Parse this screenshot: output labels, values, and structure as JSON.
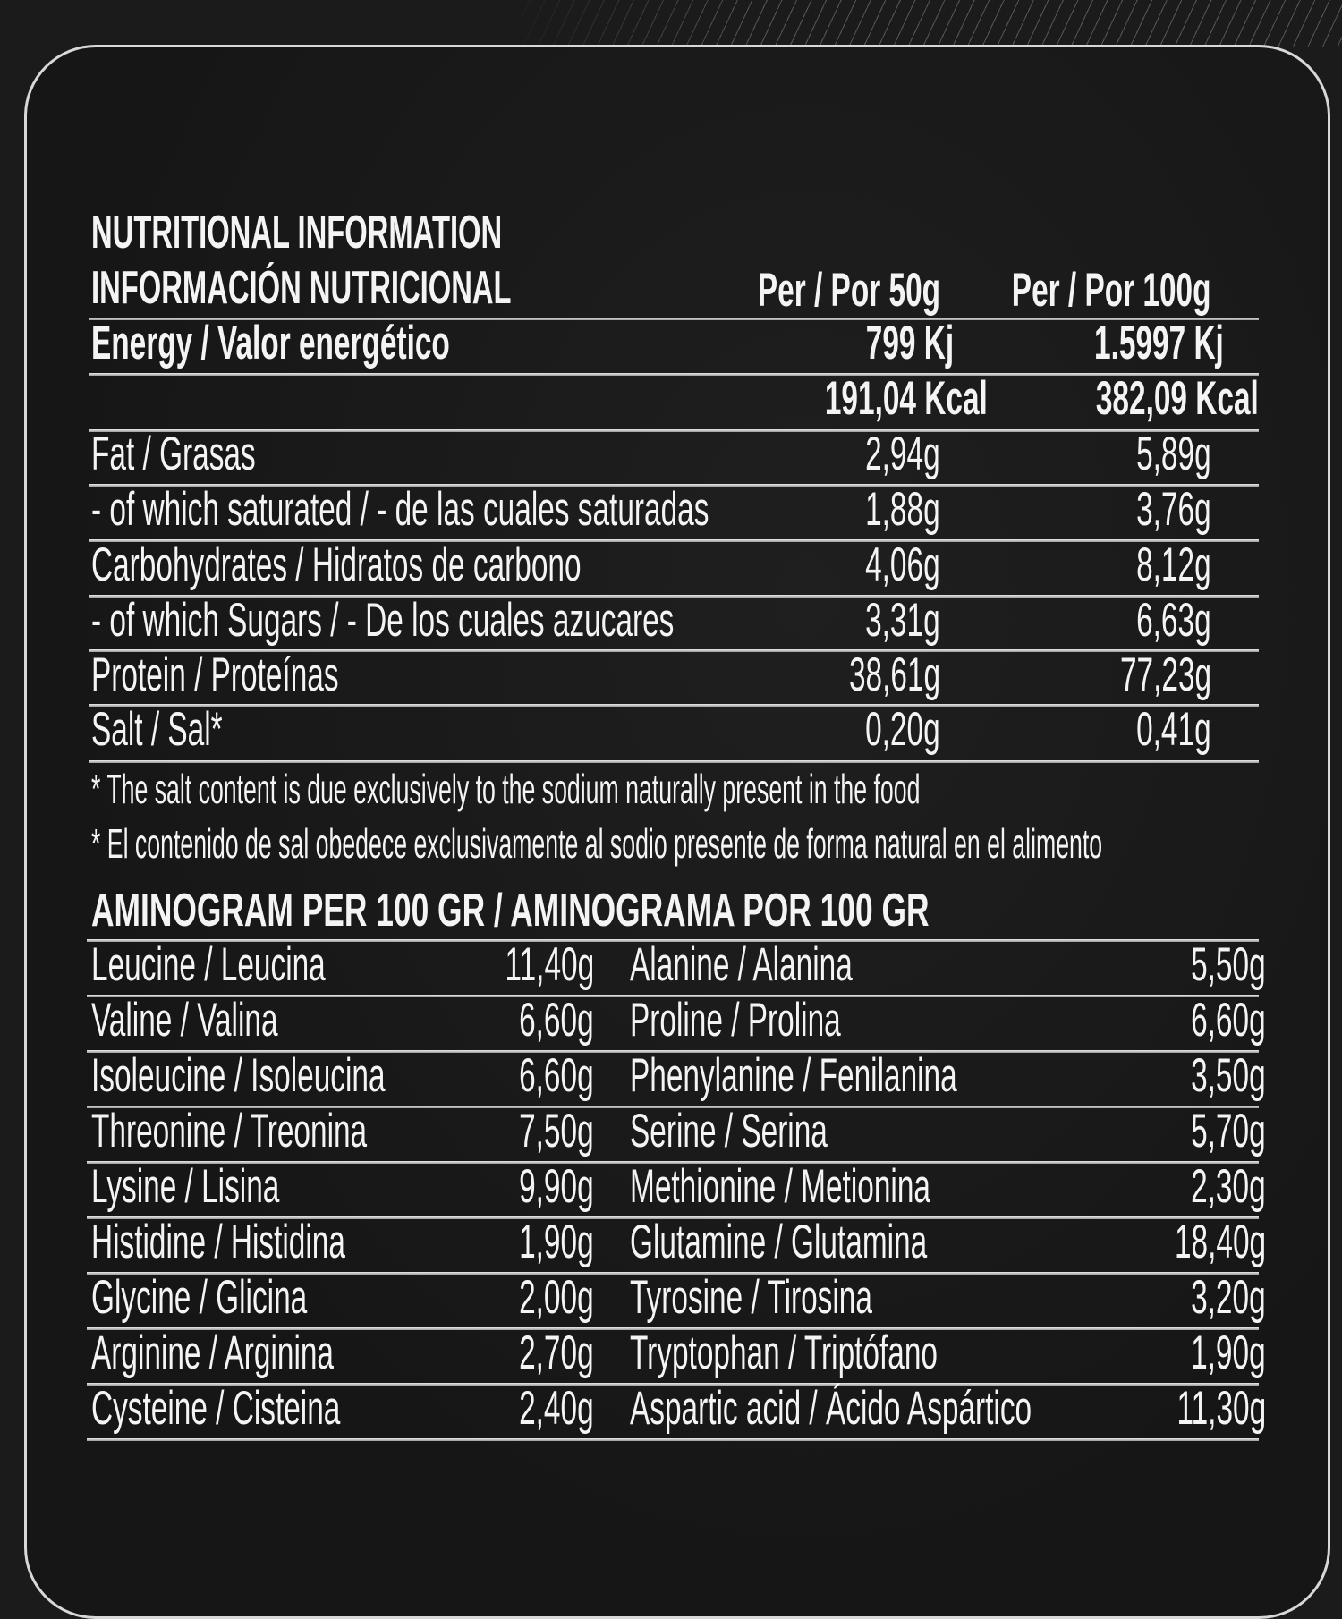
{
  "colors": {
    "background": "#1b1b1b",
    "text": "#f4f4f4",
    "rule": "#c8c8c8"
  },
  "nutrition": {
    "title_en": "NUTRITIONAL INFORMATION",
    "title_es": "INFORMACIÓN NUTRICIONAL",
    "col_50": "Per / Por 50g",
    "col_100": "Per / Por 100g",
    "energy": {
      "label": "Energy  / Valor energético",
      "kj_50": "799 Kj",
      "kj_100": "1.5997 Kj",
      "kcal_50": "191,04 Kcal",
      "kcal_100": "382,09 Kcal"
    },
    "rows": [
      {
        "label": "Fat / Grasas",
        "v50": "2,94g",
        "v100": "5,89g"
      },
      {
        "label": "- of which saturated / - de las cuales saturadas",
        "v50": "1,88g",
        "v100": "3,76g"
      },
      {
        "label": "Carbohydrates  / Hidratos de carbono",
        "v50": "4,06g",
        "v100": "8,12g"
      },
      {
        "label": "- of which Sugars / - De los cuales azucares",
        "v50": "3,31g",
        "v100": "6,63g"
      },
      {
        "label": "Protein / Proteínas",
        "v50": "38,61g",
        "v100": "77,23g"
      },
      {
        "label": "Salt / Sal*",
        "v50": "0,20g",
        "v100": "0,41g"
      }
    ],
    "footnote_en": "* The salt content is due exclusively to the sodium naturally present in the food",
    "footnote_es": "* El contenido de sal obedece exclusivamente al sodio presente de forma natural en el alimento"
  },
  "aminogram": {
    "title": "AMINOGRAM PER 100 GR / AMINOGRAMA POR 100 GR",
    "rows": [
      {
        "left": "Leucine  / Leucina",
        "left_value": "11,40g",
        "right": "Alanine / Alanina",
        "right_value": "5,50g"
      },
      {
        "left": "Valine / Valina",
        "left_value": "6,60g",
        "right": "Proline / Prolina",
        "right_value": "6,60g"
      },
      {
        "left": "Isoleucine / Isoleucina",
        "left_value": "6,60g",
        "right": "Phenylanine / Fenilanina",
        "right_value": "3,50g"
      },
      {
        "left": "Threonine / Treonina",
        "left_value": "7,50g",
        "right": "Serine / Serina",
        "right_value": "5,70g"
      },
      {
        "left": "Lysine / Lisina",
        "left_value": "9,90g",
        "right": "Methionine / Metionina",
        "right_value": "2,30g"
      },
      {
        "left": "Histidine / Histidina",
        "left_value": "1,90g",
        "right": "Glutamine / Glutamina",
        "right_value": "18,40g"
      },
      {
        "left": "Glycine / Glicina",
        "left_value": "2,00g",
        "right": "Tyrosine / Tirosina",
        "right_value": "3,20g"
      },
      {
        "left": "Arginine / Arginina",
        "left_value": "2,70g",
        "right": "Tryptophan / Triptófano",
        "right_value": "1,90g"
      },
      {
        "left": "Cysteine / Cisteina",
        "left_value": "2,40g",
        "right": "Aspartic acid / Ácido Aspártico",
        "right_value": "11,30g"
      }
    ]
  }
}
